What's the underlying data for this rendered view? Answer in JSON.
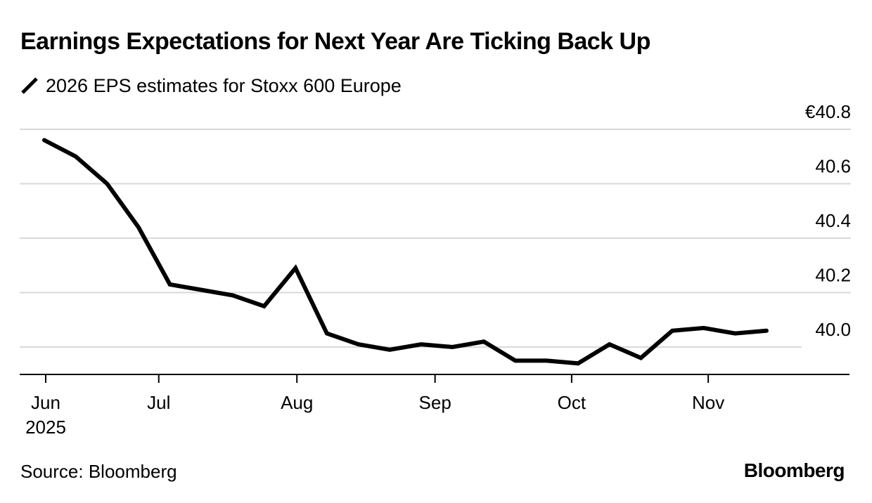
{
  "title": "Earnings Expectations for Next Year Are Ticking Back Up",
  "legend": {
    "label": "2026 EPS estimates for Stoxx 600 Europe",
    "icon": "line-swatch-icon",
    "color": "#000000"
  },
  "source": "Source: Bloomberg",
  "brand": "Bloomberg",
  "colors": {
    "line": "#000000",
    "grid": "#d9d9d9",
    "axis": "#000000",
    "background": "#ffffff"
  },
  "chart_data": {
    "type": "line",
    "title": "Earnings Expectations for Next Year Are Ticking Back Up",
    "subtitle": "2026 EPS estimates for Stoxx 600 Europe",
    "xlabel": "",
    "ylabel": "",
    "y_unit_prefix": "€",
    "ylim": [
      39.9,
      40.8
    ],
    "yticks": [
      40.0,
      40.2,
      40.4,
      40.6,
      40.8
    ],
    "ytick_labels": [
      "40.0",
      "40.2",
      "40.4",
      "40.6",
      "€40.8"
    ],
    "y_axis_position": "right",
    "grid": true,
    "xticks": [
      {
        "label": "Jun",
        "sublabel": "2025",
        "pos": 0.0
      },
      {
        "label": "Jul",
        "sublabel": "",
        "pos": 3.6
      },
      {
        "label": "Aug",
        "sublabel": "",
        "pos": 8.0
      },
      {
        "label": "Sep",
        "sublabel": "",
        "pos": 12.4
      },
      {
        "label": "Oct",
        "sublabel": "",
        "pos": 16.75
      },
      {
        "label": "Nov",
        "sublabel": "",
        "pos": 21.1
      }
    ],
    "xlim": [
      -0.8,
      25.0
    ],
    "legend_position": "top-left",
    "series": [
      {
        "name": "2026 EPS estimates for Stoxx 600 Europe",
        "x": [
          0,
          1,
          2,
          3,
          4,
          5,
          6,
          7,
          8,
          9,
          10,
          11,
          12,
          13,
          14,
          15,
          16,
          17,
          18,
          19,
          20,
          21,
          22,
          23
        ],
        "values": [
          40.76,
          40.7,
          40.6,
          40.44,
          40.23,
          40.21,
          40.19,
          40.15,
          40.29,
          40.05,
          40.01,
          39.99,
          40.01,
          40.0,
          40.02,
          39.95,
          39.95,
          39.94,
          40.01,
          39.96,
          40.06,
          40.07,
          40.05,
          40.06
        ]
      }
    ]
  }
}
